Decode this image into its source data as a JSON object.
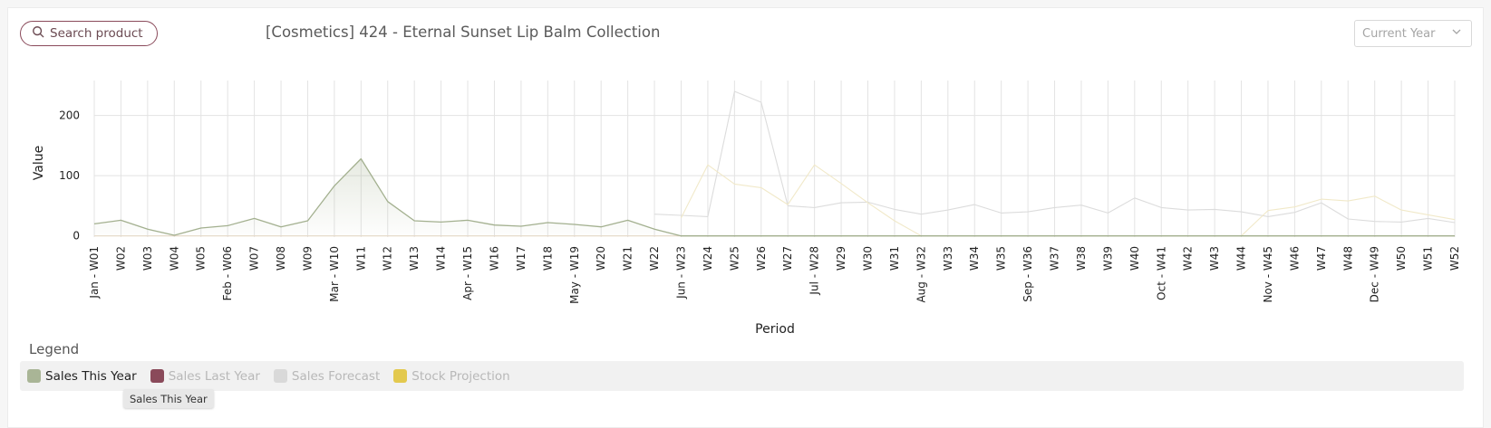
{
  "header": {
    "search_label": "Search product",
    "title": "[Cosmetics] 424 - Eternal Sunset Lip Balm Collection",
    "year_select_value": "Current Year"
  },
  "legend": {
    "title": "Legend",
    "items": [
      {
        "label": "Sales This Year",
        "color": "#a9b596",
        "active": true
      },
      {
        "label": "Sales Last Year",
        "color": "#8a4a5a",
        "active": false
      },
      {
        "label": "Sales Forecast",
        "color": "#d9d9d9",
        "active": false
      },
      {
        "label": "Stock Projection",
        "color": "#e3c94e",
        "active": false
      }
    ],
    "tooltip": "Sales This Year"
  },
  "chart_data": {
    "type": "line",
    "xlabel": "Period",
    "ylabel": "Value",
    "yticks": [
      0,
      100,
      200
    ],
    "ylim": [
      -2,
      258
    ],
    "categories": [
      "Jan - W01",
      "W02",
      "W03",
      "W04",
      "W05",
      "Feb - W06",
      "W07",
      "W08",
      "W09",
      "Mar - W10",
      "W11",
      "W12",
      "W13",
      "W14",
      "Apr - W15",
      "W16",
      "W17",
      "W18",
      "May - W19",
      "W20",
      "W21",
      "W22",
      "Jun - W23",
      "W24",
      "W25",
      "W26",
      "W27",
      "Jul - W28",
      "W29",
      "W30",
      "W31",
      "Aug - W32",
      "W33",
      "W34",
      "W35",
      "Sep - W36",
      "W37",
      "W38",
      "W39",
      "W40",
      "Oct - W41",
      "W42",
      "W43",
      "W44",
      "Nov - W45",
      "W46",
      "W47",
      "W48",
      "Dec - W49",
      "W50",
      "W51",
      "W52"
    ],
    "grid": true,
    "series": [
      {
        "name": "Sales This Year",
        "color": "#a9b596",
        "values": [
          20,
          26,
          11,
          1,
          13,
          17,
          29,
          15,
          25,
          83,
          128,
          57,
          25,
          23,
          26,
          18,
          16,
          22,
          19,
          15,
          26,
          11,
          0,
          0,
          0,
          0,
          0,
          0,
          0,
          0,
          0,
          0,
          0,
          0,
          0,
          0,
          0,
          0,
          0,
          0,
          0,
          0,
          0,
          0,
          0,
          0,
          0,
          0,
          0,
          0,
          0,
          0
        ]
      },
      {
        "name": "Sales Last Year",
        "color": "#8a4a5a",
        "values": [
          0,
          0,
          0,
          0,
          0,
          0,
          0,
          0,
          0,
          0,
          0,
          0,
          0,
          0,
          0,
          0,
          0,
          0,
          0,
          0,
          0,
          0,
          0,
          0,
          0,
          0,
          0,
          0,
          0,
          0,
          0,
          0,
          0,
          0,
          0,
          0,
          0,
          0,
          0,
          0,
          0,
          0,
          0,
          0,
          0,
          0,
          0,
          0,
          0,
          0,
          0,
          0
        ]
      },
      {
        "name": "Sales Forecast",
        "color": "#d9d9d9",
        "values": [
          null,
          null,
          null,
          null,
          null,
          null,
          null,
          null,
          null,
          null,
          null,
          null,
          null,
          null,
          null,
          null,
          null,
          null,
          null,
          null,
          null,
          36,
          34,
          32,
          240,
          222,
          50,
          47,
          55,
          56,
          44,
          36,
          43,
          52,
          38,
          40,
          47,
          51,
          38,
          63,
          47,
          43,
          44,
          40,
          32,
          39,
          55,
          28,
          24,
          23,
          29,
          22
        ]
      },
      {
        "name": "Stock Projection",
        "color": "#e3c94e",
        "values": [
          null,
          null,
          null,
          null,
          null,
          null,
          null,
          null,
          null,
          null,
          null,
          null,
          null,
          null,
          null,
          null,
          null,
          null,
          null,
          null,
          null,
          null,
          30,
          118,
          86,
          80,
          52,
          118,
          87,
          55,
          25,
          0,
          0,
          0,
          0,
          0,
          0,
          0,
          0,
          0,
          0,
          0,
          0,
          0,
          42,
          48,
          61,
          58,
          66,
          43,
          35,
          27
        ]
      }
    ]
  }
}
